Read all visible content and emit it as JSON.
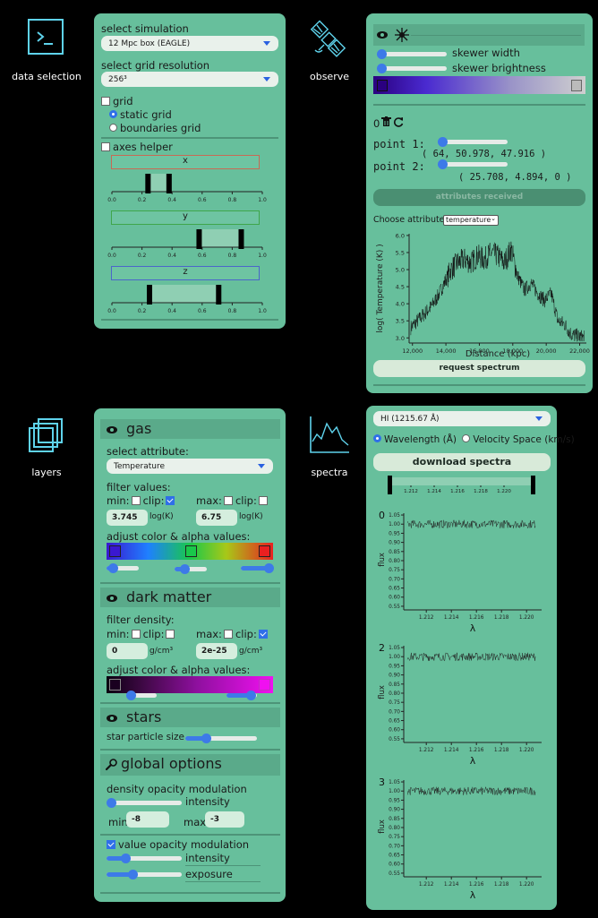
{
  "nav": {
    "data_selection": "data selection",
    "observe": "observe",
    "layers": "layers",
    "spectra": "spectra"
  },
  "data_panel": {
    "select_simulation_label": "select simulation",
    "simulation_value": "12 Mpc box (EAGLE)",
    "select_grid_label": "select grid resolution",
    "grid_value": "256³",
    "grid_label": "grid",
    "static_grid": "static grid",
    "boundaries_grid": "boundaries grid",
    "axes_helper": "axes helper",
    "axis_ticks": [
      "0.0",
      "0.2",
      "0.4",
      "0.6",
      "0.8",
      "1.0"
    ],
    "axes": [
      {
        "name": "x",
        "min": 0.24,
        "max": 0.38,
        "color": "#c66a55"
      },
      {
        "name": "y",
        "min": 0.58,
        "max": 0.86,
        "color": "#3fa64b"
      },
      {
        "name": "z",
        "min": 0.25,
        "max": 0.71,
        "color": "#4b66c9"
      }
    ]
  },
  "observe_panel": {
    "skewer_width": "skewer width",
    "skewer_brightness": "skewer brightness",
    "skewer_width_value": 0.55,
    "skewer_brightness_value": 0.05,
    "count": "0",
    "point1_label": "point 1:",
    "point1_coords": "( 64, 50.978, 47.916 )",
    "point2_label": "point 2:",
    "point2_coords": "( 25.708, 4.894, 0 )",
    "attributes_received": "attributes received",
    "choose_attribute": "Choose attribute:",
    "attribute_value": "temperature",
    "request_spectrum": "request spectrum"
  },
  "layers_panel": {
    "gas_title": "gas",
    "select_attribute": "select attribute:",
    "attribute_value": "Temperature",
    "filter_values": "filter values:",
    "min_label": "min:",
    "max_label": "max:",
    "clip_label": "clip:",
    "gas_min": "3.745",
    "gas_min_unit": "log(K)",
    "gas_max": "6.75",
    "gas_max_unit": "log(K)",
    "adjust_color": "adjust color & alpha values:",
    "dm_title": "dark matter",
    "filter_density": "filter density:",
    "dm_min": "0",
    "dm_max": "2e-25",
    "dm_unit": "g/cm³",
    "stars_title": "stars",
    "star_particle_size": "star particle size",
    "global_title": "global options",
    "density_opacity": "density opacity modulation",
    "intensity": "intensity",
    "min_word": "min",
    "max_word": "max",
    "global_min": "-8",
    "global_max": "-3",
    "value_opacity": "value opacity modulation",
    "exposure": "exposure"
  },
  "spectra_panel": {
    "line_select": "HI (1215.67 Å)",
    "wavelength_option": "Wavelength (Å)",
    "velocity_option": "Velocity Space (km/s)",
    "download": "download spectra",
    "range_ticks": [
      "1.212",
      "1.214",
      "1.216",
      "1.218",
      "1.220"
    ]
  },
  "chart_data": [
    {
      "type": "line",
      "xlabel": "Distance (kpc)",
      "ylabel": "log( Temperature (K) )",
      "xlim": [
        11800,
        22400
      ],
      "ylim": [
        2.85,
        6.05
      ],
      "xticks": [
        "12,000",
        "14,000",
        "16,000",
        "18,000",
        "20,000",
        "22,000"
      ],
      "yticks": [
        "3.0",
        "3.5",
        "4.0",
        "4.5",
        "5.0",
        "5.5",
        "6.0"
      ],
      "x": [
        11900,
        12300,
        12700,
        13100,
        13500,
        13900,
        14300,
        14700,
        15100,
        15500,
        15900,
        16300,
        16700,
        17100,
        17500,
        17900,
        18300,
        18700,
        19100,
        19500,
        19900,
        20300,
        20700,
        21100,
        21500,
        21900,
        22300
      ],
      "y": [
        3.3,
        3.5,
        3.7,
        3.9,
        4.2,
        4.6,
        5.0,
        5.2,
        5.3,
        5.2,
        5.4,
        5.3,
        5.5,
        5.4,
        5.2,
        5.6,
        4.8,
        4.4,
        4.6,
        4.3,
        4.1,
        4.3,
        3.5,
        3.4,
        3.1,
        3.05,
        3.0
      ]
    },
    {
      "type": "line",
      "title": "0",
      "xlabel": "λ",
      "ylabel": "flux",
      "xlim": [
        1.2102,
        1.2212
      ],
      "ylim": [
        0.53,
        1.06
      ],
      "xticks": [
        "1.212",
        "1.214",
        "1.216",
        "1.218",
        "1.220"
      ],
      "yticks": [
        "0.55",
        "0.60",
        "0.65",
        "0.70",
        "0.75",
        "0.80",
        "0.85",
        "0.90",
        "0.95",
        "1.00",
        "1.05"
      ],
      "x": [
        1.2105,
        1.211,
        1.212,
        1.213,
        1.214,
        1.215,
        1.216,
        1.217,
        1.218,
        1.219,
        1.22,
        1.2207
      ],
      "y": [
        1.0,
        1.0,
        1.0,
        1.0,
        1.0,
        1.0,
        1.0,
        1.0,
        1.0,
        1.0,
        1.0,
        1.0
      ]
    },
    {
      "type": "line",
      "title": "2",
      "xlabel": "λ",
      "ylabel": "flux",
      "xlim": [
        1.2102,
        1.2212
      ],
      "ylim": [
        0.53,
        1.06
      ],
      "xticks": [
        "1.212",
        "1.214",
        "1.216",
        "1.218",
        "1.220"
      ],
      "yticks": [
        "0.55",
        "0.60",
        "0.65",
        "0.70",
        "0.75",
        "0.80",
        "0.85",
        "0.90",
        "0.95",
        "1.00",
        "1.05"
      ],
      "x": [
        1.2105,
        1.211,
        1.212,
        1.213,
        1.214,
        1.215,
        1.216,
        1.217,
        1.218,
        1.219,
        1.22,
        1.2207
      ],
      "y": [
        1.0,
        1.0,
        1.0,
        1.0,
        1.0,
        1.0,
        1.0,
        1.0,
        1.0,
        1.0,
        1.0,
        1.0
      ]
    },
    {
      "type": "line",
      "title": "3",
      "xlabel": "λ",
      "ylabel": "flux",
      "xlim": [
        1.2102,
        1.2212
      ],
      "ylim": [
        0.53,
        1.06
      ],
      "xticks": [
        "1.212",
        "1.214",
        "1.216",
        "1.218",
        "1.220"
      ],
      "yticks": [
        "0.55",
        "0.60",
        "0.65",
        "0.70",
        "0.75",
        "0.80",
        "0.85",
        "0.90",
        "0.95",
        "1.00",
        "1.05"
      ],
      "x": [
        1.2105,
        1.211,
        1.212,
        1.213,
        1.214,
        1.215,
        1.216,
        1.217,
        1.218,
        1.219,
        1.22,
        1.2207
      ],
      "y": [
        1.0,
        1.0,
        1.0,
        1.0,
        1.0,
        1.0,
        1.0,
        1.0,
        1.0,
        1.0,
        1.0,
        1.0
      ]
    }
  ]
}
